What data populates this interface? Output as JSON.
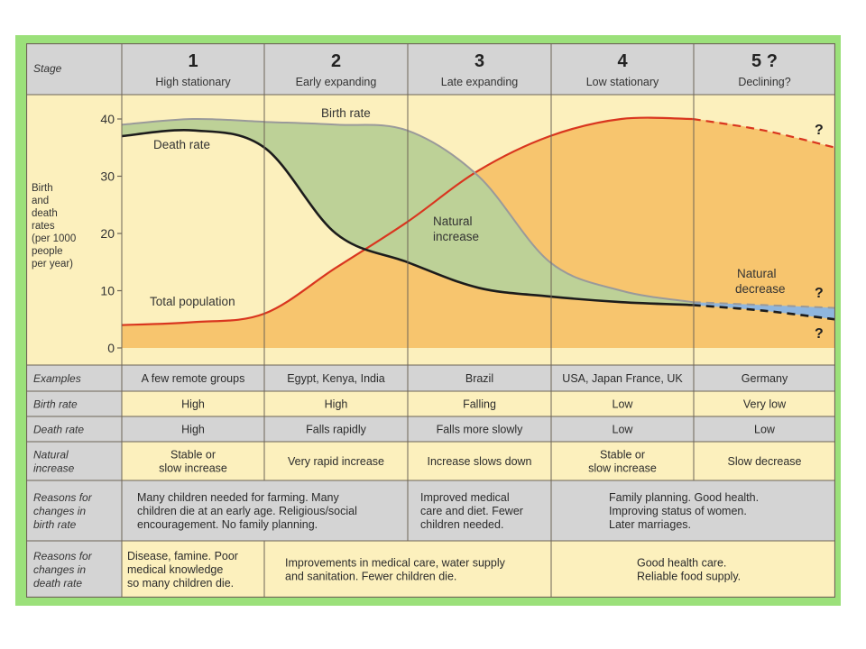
{
  "colors": {
    "frame": "#9be07a",
    "header_bg": "#d4d4d4",
    "panel_bg": "#fcf0bd",
    "border": "#6d6456",
    "birth_fill": "#bdd197",
    "population_fill": "#f7c56e",
    "population_line": "#d9361f",
    "birth_line": "#9a9a9a",
    "death_line": "#1c1c1c",
    "decrease_fill": "#8fb6de"
  },
  "header": {
    "label": "Stage",
    "stages": [
      {
        "number": "1",
        "name": "High stationary"
      },
      {
        "number": "2",
        "name": "Early expanding"
      },
      {
        "number": "3",
        "name": "Late expanding"
      },
      {
        "number": "4",
        "name": "Low stationary"
      },
      {
        "number": "5 ?",
        "name": "Declining?"
      }
    ]
  },
  "chart_data": {
    "type": "line",
    "ylabel": "Birth and death rates (per 1000 people per year)",
    "ylim": [
      0,
      40
    ],
    "yticks": [
      "0",
      "10",
      "20",
      "30",
      "40"
    ],
    "x": [
      0,
      0.5,
      1,
      1.5,
      2,
      2.5,
      3,
      3.5,
      4,
      4.5,
      5
    ],
    "series": [
      {
        "name": "Birth rate",
        "values": [
          39,
          40,
          39.5,
          39,
          38,
          30,
          15,
          10,
          8,
          7.5,
          7
        ]
      },
      {
        "name": "Death rate",
        "values": [
          37,
          38,
          35,
          20,
          15,
          10.5,
          9,
          8,
          7.5,
          6.5,
          5
        ]
      },
      {
        "name": "Total population",
        "values": [
          4,
          4.5,
          6,
          14,
          22,
          31,
          37,
          40,
          40,
          38,
          35
        ]
      }
    ],
    "annotations": {
      "birth": "Birth rate",
      "death": "Death rate",
      "population": "Total population",
      "natural_increase_1": "Natural",
      "natural_increase_2": "increase",
      "natural_decrease_1": "Natural",
      "natural_decrease_2": "decrease",
      "question": "?"
    }
  },
  "ylabel_lines": [
    "Birth",
    "and",
    "death",
    "rates",
    "(per 1000",
    "people",
    "per year)"
  ],
  "rows": [
    {
      "label": [
        "Examples"
      ],
      "cells": [
        [
          "A few remote groups"
        ],
        [
          "Egypt, Kenya, India"
        ],
        [
          "Brazil"
        ],
        [
          "USA, Japan France, UK"
        ],
        [
          "Germany"
        ]
      ]
    },
    {
      "label": [
        "Birth rate"
      ],
      "cells": [
        [
          "High"
        ],
        [
          "High"
        ],
        [
          "Falling"
        ],
        [
          "Low"
        ],
        [
          "Very low"
        ]
      ]
    },
    {
      "label": [
        "Death rate"
      ],
      "cells": [
        [
          "High"
        ],
        [
          "Falls rapidly"
        ],
        [
          "Falls more slowly"
        ],
        [
          "Low"
        ],
        [
          "Low"
        ]
      ]
    },
    {
      "label": [
        "Natural",
        "increase"
      ],
      "cells": [
        [
          "Stable or",
          "slow increase"
        ],
        [
          "Very rapid increase"
        ],
        [
          "Increase slows down"
        ],
        [
          "Stable or",
          "slow increase"
        ],
        [
          "Slow decrease"
        ]
      ]
    },
    {
      "label": [
        "Reasons for",
        "changes in",
        "birth rate"
      ],
      "cells": [
        [
          "Many children needed for farming. Many",
          "children die at an early age. Religious/social",
          "encouragement. No family planning."
        ],
        [
          "Improved medical",
          "care and diet. Fewer",
          "children needed."
        ],
        [
          "Family planning. Good health.",
          "Improving status of women.",
          "Later marriages."
        ]
      ]
    },
    {
      "label": [
        "Reasons for",
        "changes in",
        "death rate"
      ],
      "cells": [
        [
          "Disease, famine. Poor",
          "medical knowledge",
          "so many children die."
        ],
        [
          "Improvements in medical care, water supply",
          "and sanitation. Fewer children die."
        ],
        [
          "Good health care.",
          "Reliable food supply."
        ]
      ]
    }
  ]
}
